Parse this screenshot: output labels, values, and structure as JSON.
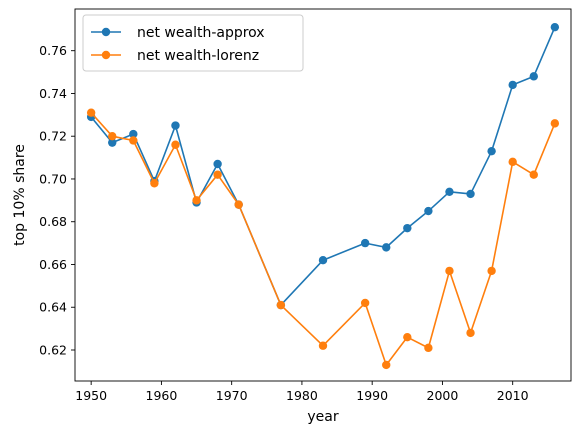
{
  "chart_data": {
    "type": "line",
    "xlabel": "year",
    "ylabel": "top 10% share",
    "xlim": [
      1947.7,
      2018.3
    ],
    "ylim": [
      0.6055,
      0.7795
    ],
    "x_ticks": [
      1950,
      1960,
      1970,
      1980,
      1990,
      2000,
      2010
    ],
    "y_ticks": [
      0.62,
      0.64,
      0.66,
      0.68,
      0.7,
      0.72,
      0.74,
      0.76
    ],
    "x_tick_labels": [
      "1950",
      "1960",
      "1970",
      "1980",
      "1990",
      "2000",
      "2010"
    ],
    "y_tick_labels": [
      "0.62",
      "0.64",
      "0.66",
      "0.68",
      "0.70",
      "0.72",
      "0.74",
      "0.76"
    ],
    "legend_position": "top-left",
    "grid": false,
    "series": [
      {
        "name": "net wealth-approx",
        "color": "#1f77b4",
        "x": [
          1950,
          1953,
          1956,
          1959,
          1962,
          1965,
          1968,
          1971,
          1977,
          1983,
          1989,
          1992,
          1995,
          1998,
          2001,
          2004,
          2007,
          2010,
          2013,
          2016
        ],
        "y": [
          0.729,
          0.717,
          0.721,
          0.699,
          0.725,
          0.689,
          0.707,
          0.688,
          0.641,
          0.662,
          0.67,
          0.668,
          0.677,
          0.685,
          0.694,
          0.693,
          0.713,
          0.744,
          0.748,
          0.771
        ]
      },
      {
        "name": "net wealth-lorenz",
        "color": "#ff7f0e",
        "x": [
          1950,
          1953,
          1956,
          1959,
          1962,
          1965,
          1968,
          1971,
          1977,
          1983,
          1989,
          1992,
          1995,
          1998,
          2001,
          2004,
          2007,
          2010,
          2013,
          2016
        ],
        "y": [
          0.731,
          0.72,
          0.718,
          0.698,
          0.716,
          0.69,
          0.702,
          0.688,
          0.641,
          0.622,
          0.642,
          0.613,
          0.626,
          0.621,
          0.657,
          0.628,
          0.657,
          0.708,
          0.702,
          0.726
        ]
      }
    ]
  }
}
